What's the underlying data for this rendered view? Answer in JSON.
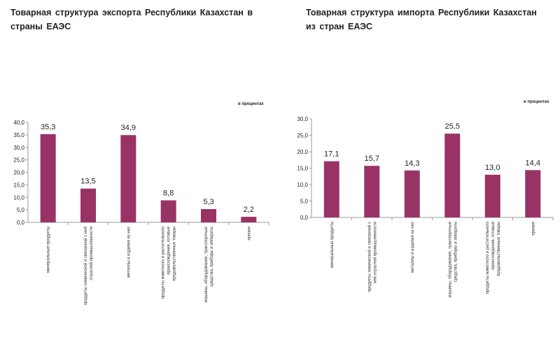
{
  "chart_data": [
    {
      "type": "bar",
      "title": "Товарная структура экспорта Республики Казахстан в страны ЕАЭС",
      "unit_note": "в процентах",
      "categories": [
        "минеральные продукты",
        "продукты химической и связанной с ней отраслей промышленности",
        "металлы и изделия из них",
        "продукты животного и растительного происхождения, готовые продовольственные товары",
        "машины, оборудование, транспортные средства, приборы и аппараты",
        "прочие"
      ],
      "category_lines": [
        [
          "минеральные продукты"
        ],
        [
          "продукты химической и связанной с ней",
          "отраслей промышленности"
        ],
        [
          "металлы и изделия из них"
        ],
        [
          "продукты животного и растительного",
          "происхождения, готовые",
          "продовольственные товары"
        ],
        [
          "машины, оборудование, транспортные",
          "средства, приборы и аппараты"
        ],
        [
          "прочие"
        ]
      ],
      "values": [
        35.3,
        13.5,
        34.9,
        8.8,
        5.3,
        2.2
      ],
      "data_labels": [
        "35,3",
        "13,5",
        "34,9",
        "8,8",
        "5,3",
        "2,2"
      ],
      "ylim": [
        0,
        40
      ],
      "yticks": [
        "0,0",
        "5,0",
        "10,0",
        "15,0",
        "20,0",
        "25,0",
        "30,0",
        "35,0",
        "40,0"
      ],
      "color": "#993366"
    },
    {
      "type": "bar",
      "title": "Товарная структура импорта Республики Казахстан из стран ЕАЭС",
      "unit_note": "в процентах",
      "categories": [
        "минеральные продукты",
        "продукты химической и связанной с ней отраслей промышленности",
        "металлы и изделия из них",
        "машины, оборудование, транспортные средства, приборы и аппараты",
        "продукты животного и растительного происхождения, готовые продовольственные товары",
        "прочие"
      ],
      "category_lines": [
        [
          "минеральные продукты"
        ],
        [
          "продукты химической и связанной с",
          "ней отраслей промышленности"
        ],
        [
          "металлы и изделия из них"
        ],
        [
          "машины, оборудование, транспортные",
          "средства, приборы и аппараты"
        ],
        [
          "продукты животного и растительного",
          "происхождения, готовые",
          "продовольственные товары"
        ],
        [
          "прочие"
        ]
      ],
      "values": [
        17.1,
        15.7,
        14.3,
        25.5,
        13.0,
        14.4
      ],
      "data_labels": [
        "17,1",
        "15,7",
        "14,3",
        "25,5",
        "13,0",
        "14,4"
      ],
      "ylim": [
        0,
        30
      ],
      "yticks": [
        "0,0",
        "5,0",
        "10,0",
        "15,0",
        "20,0",
        "25,0",
        "30,0"
      ],
      "color": "#993366"
    }
  ],
  "titles": {
    "left_line1": "Товарная структура экспорта Республики Казахстан в",
    "left_line2": "страны ЕАЭС",
    "right_line1": "Товарная структура импорта Республики Казахстан",
    "right_line2": "из стран ЕАЭС"
  }
}
